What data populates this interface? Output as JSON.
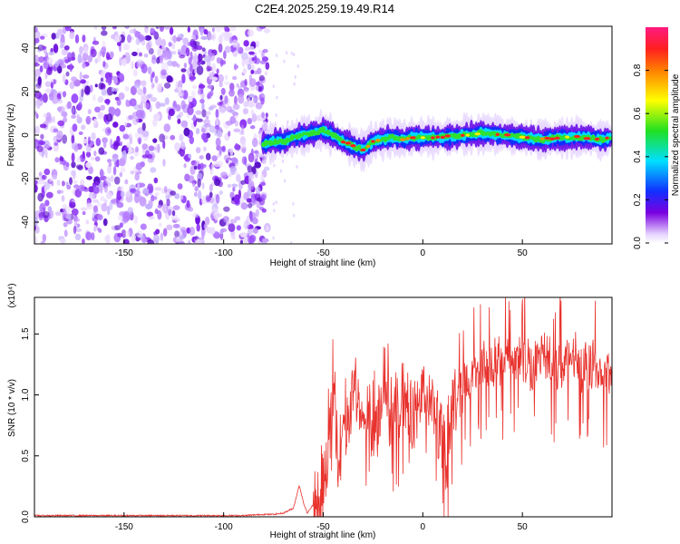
{
  "title": "C2E4.2025.259.19.49.R14",
  "chart_data": [
    {
      "type": "heatmap",
      "xlabel": "Height of straight line (km)",
      "ylabel": "Frequency (Hz)",
      "xlim": [
        -195,
        95
      ],
      "ylim": [
        -50,
        50
      ],
      "xticks": [
        -150,
        -100,
        -50,
        0,
        50
      ],
      "yticks": [
        -40,
        -20,
        0,
        20,
        40
      ],
      "colorbar": {
        "label": "Normalized spectral amplitude",
        "range": [
          0,
          1
        ],
        "ticks": [
          0.0,
          0.2,
          0.4,
          0.6,
          0.8
        ],
        "colormap": "rainbow (white → violet → blue → cyan → green → yellow → red → pink)"
      },
      "noise_region_x": [
        -195,
        -78
      ],
      "signal_track": {
        "x": [
          -80,
          -75,
          -70,
          -65,
          -60,
          -55,
          -50,
          -45,
          -40,
          -35,
          -30,
          -25,
          -20,
          -15,
          -10,
          -5,
          0,
          10,
          20,
          30,
          40,
          50,
          60,
          70,
          80,
          90,
          95
        ],
        "frequency": [
          -4,
          -3,
          -3,
          -1,
          0,
          1,
          2,
          0,
          -3,
          -5,
          -7,
          -3,
          -2,
          -1,
          -2,
          -1,
          -1,
          -1,
          0,
          1,
          0,
          -1,
          -2,
          -1,
          -1,
          -2,
          -1
        ]
      },
      "grid": false,
      "legend": "colorbar-right"
    },
    {
      "type": "line",
      "xlabel": "Height of straight line (km)",
      "ylabel": "SNR (10 * v/v)",
      "y_multiplier": "(x10⁴)",
      "xlim": [
        -195,
        95
      ],
      "ylim": [
        0.0,
        1.8
      ],
      "xticks": [
        -150,
        -100,
        -50,
        0,
        50
      ],
      "yticks": [
        0.0,
        0.5,
        1.0,
        1.5
      ],
      "color": "#e8322d",
      "series": [
        {
          "x": [
            -195,
            -180,
            -160,
            -140,
            -120,
            -100,
            -90,
            -80,
            -75,
            -70,
            -65,
            -62,
            -60,
            -58,
            -55,
            -52,
            -50,
            -47,
            -45,
            -42,
            -40,
            -37,
            -35,
            -30,
            -27,
            -25,
            -20,
            -15,
            -10,
            -5,
            0,
            5,
            8,
            12,
            15,
            20,
            25,
            30,
            35,
            40,
            45,
            50,
            55,
            60,
            65,
            70,
            75,
            80,
            85,
            90,
            95
          ],
          "y": [
            0.01,
            0.01,
            0.01,
            0.01,
            0.01,
            0.01,
            0.01,
            0.02,
            0.02,
            0.03,
            0.07,
            0.26,
            0.12,
            0.03,
            0.1,
            0.18,
            0.35,
            0.55,
            0.95,
            0.5,
            0.7,
            0.8,
            1.0,
            0.72,
            0.9,
            0.55,
            0.9,
            0.75,
            1.0,
            0.8,
            1.05,
            0.9,
            0.72,
            0.5,
            0.95,
            1.05,
            1.15,
            1.2,
            1.25,
            1.28,
            1.3,
            1.32,
            1.2,
            1.35,
            1.25,
            1.28,
            1.3,
            1.2,
            1.25,
            1.15,
            1.25
          ]
        }
      ],
      "grid": false
    }
  ]
}
